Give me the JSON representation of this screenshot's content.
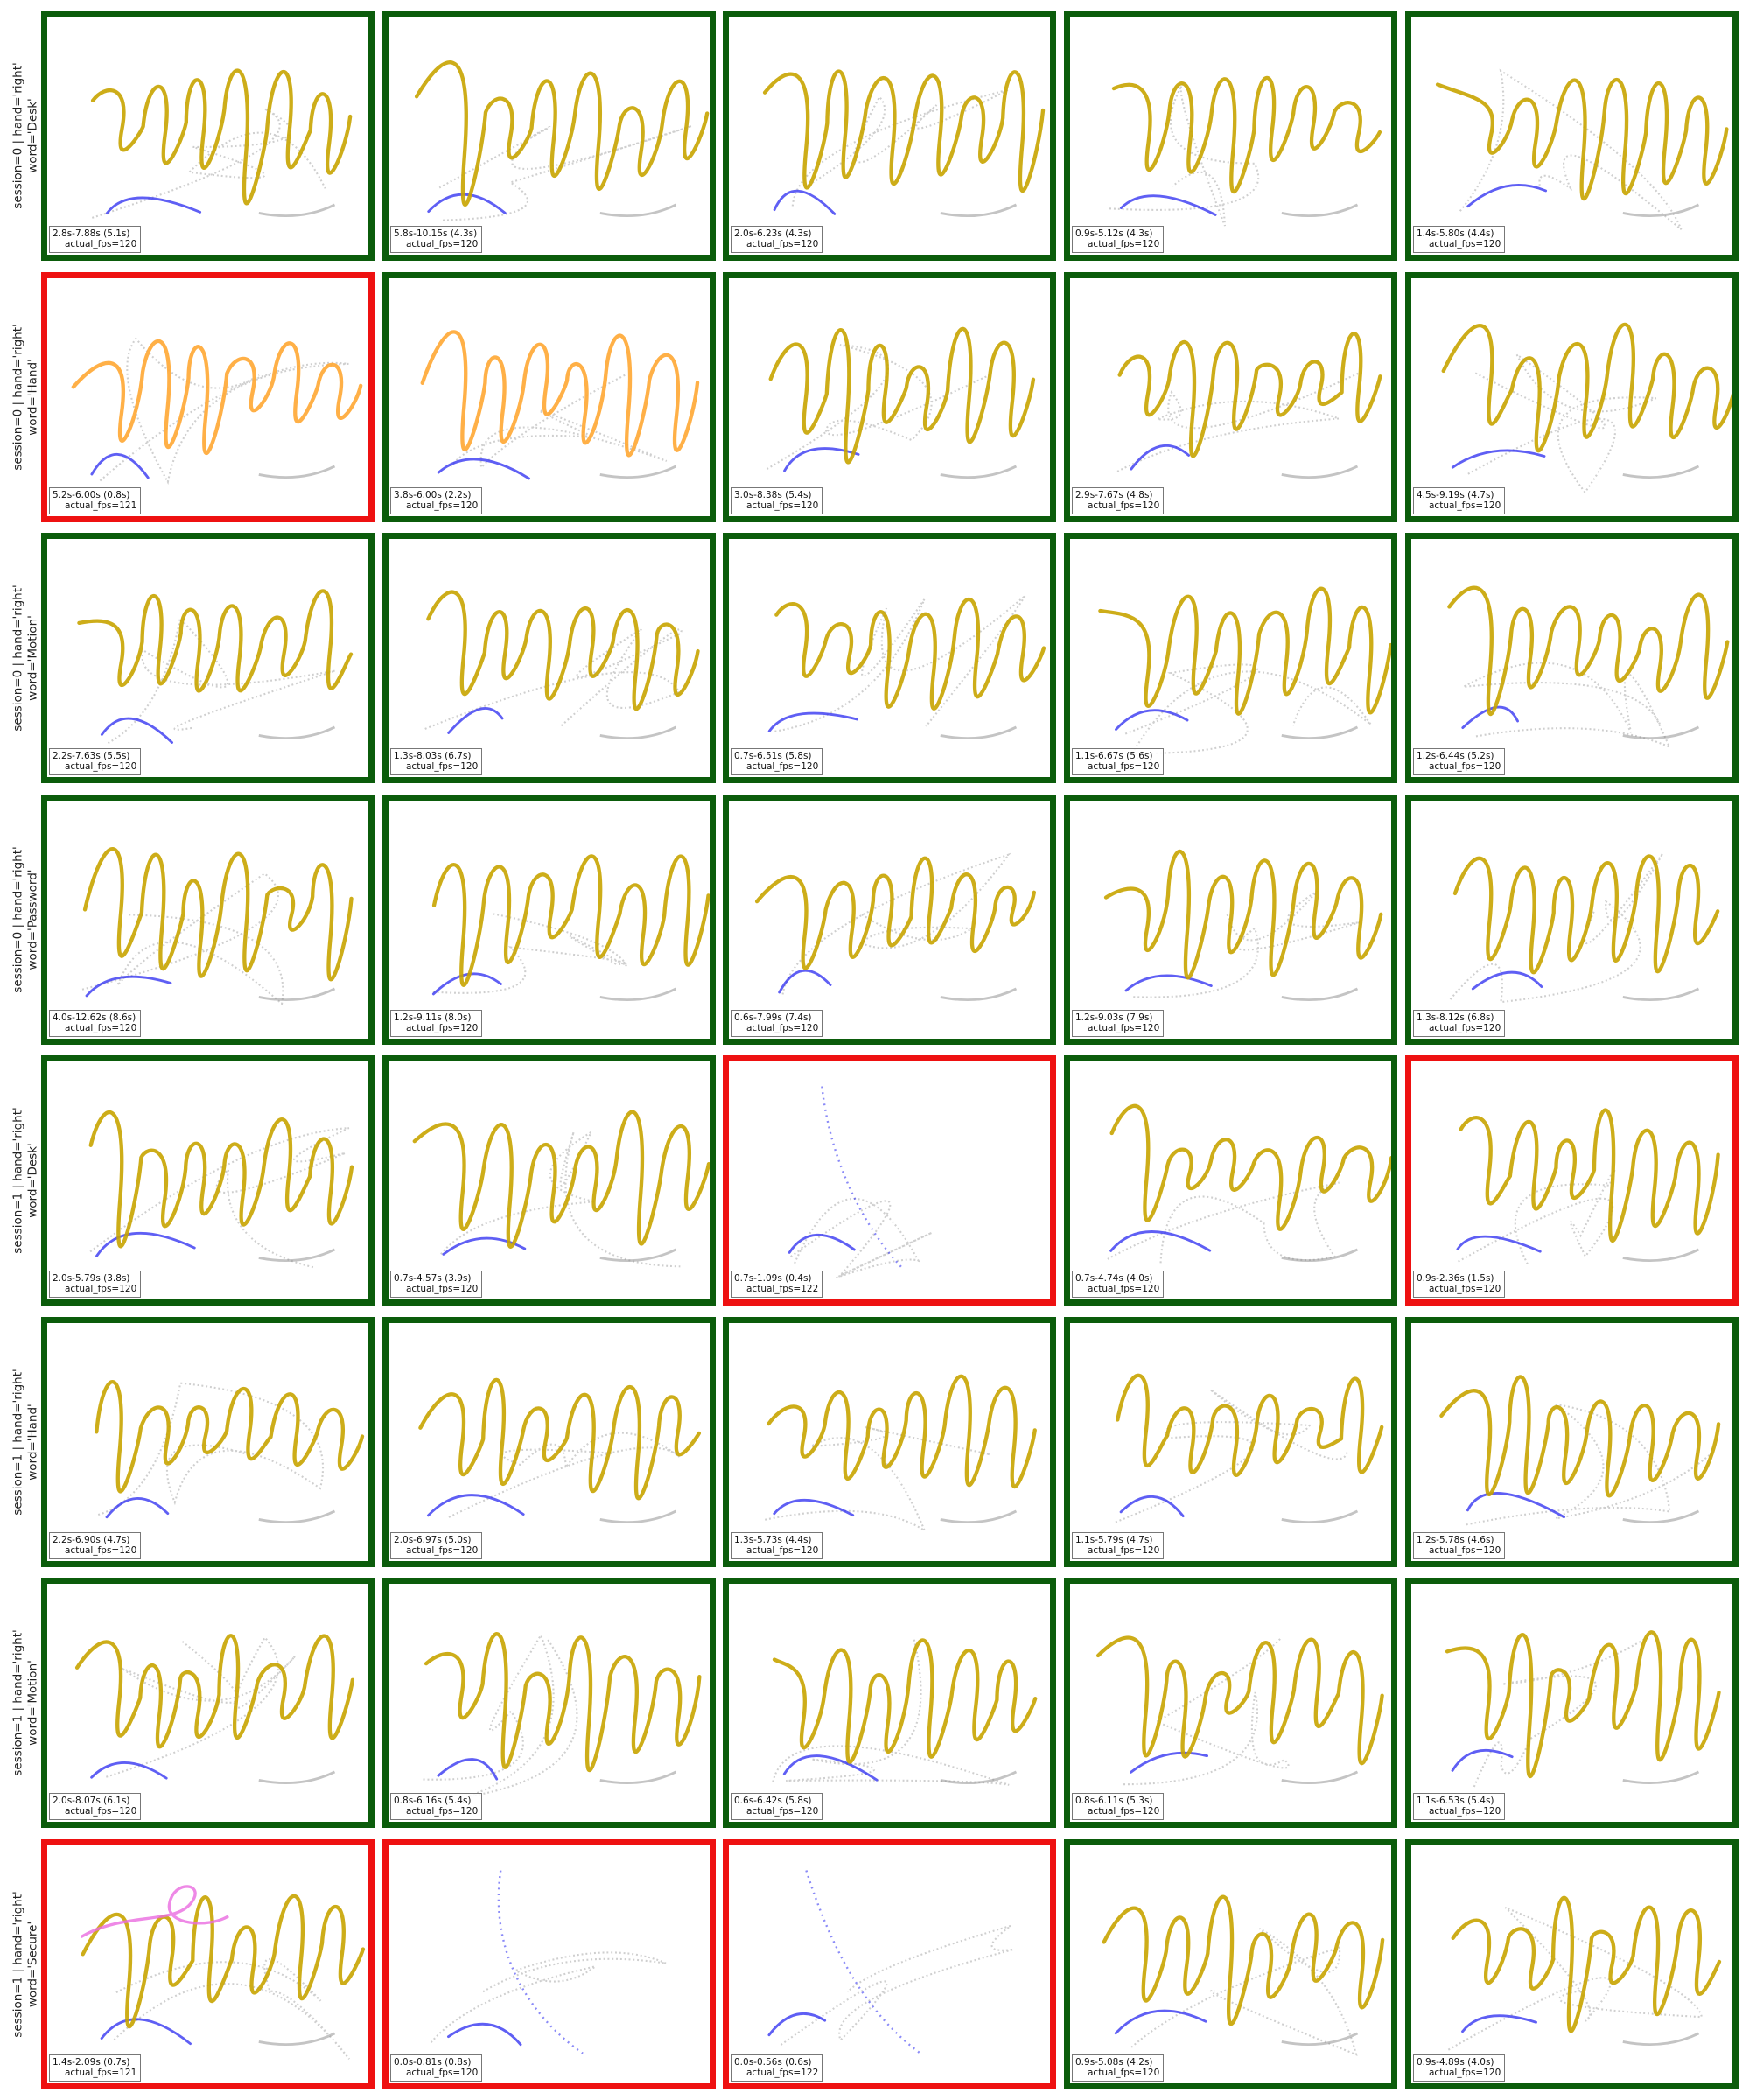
{
  "colors": {
    "ok_border": "#0b5c0b",
    "bad_border": "#ee1111",
    "stroke_main": "#c8a400",
    "stroke_orange": "#ffa733",
    "stroke_blue": "#2a2af0",
    "stroke_gray": "#8a8a8a",
    "stroke_pink": "#ea6ce0"
  },
  "rows": [
    {
      "label_line1": "session=0 | hand='right'",
      "label_line2": "word='Desk'",
      "cells": [
        {
          "time": "2.8s-7.88s (5.1s)",
          "fps": "actual_fps=120",
          "status": "ok"
        },
        {
          "time": "5.8s-10.15s (4.3s)",
          "fps": "actual_fps=120",
          "status": "ok"
        },
        {
          "time": "2.0s-6.23s (4.3s)",
          "fps": "actual_fps=120",
          "status": "ok"
        },
        {
          "time": "0.9s-5.12s (4.3s)",
          "fps": "actual_fps=120",
          "status": "ok"
        },
        {
          "time": "1.4s-5.80s (4.4s)",
          "fps": "actual_fps=120",
          "status": "ok"
        }
      ]
    },
    {
      "label_line1": "session=0 | hand='right'",
      "label_line2": "word='Hand'",
      "cells": [
        {
          "time": "5.2s-6.00s (0.8s)",
          "fps": "actual_fps=121",
          "status": "bad"
        },
        {
          "time": "3.8s-6.00s (2.2s)",
          "fps": "actual_fps=120",
          "status": "ok"
        },
        {
          "time": "3.0s-8.38s (5.4s)",
          "fps": "actual_fps=120",
          "status": "ok"
        },
        {
          "time": "2.9s-7.67s (4.8s)",
          "fps": "actual_fps=120",
          "status": "ok"
        },
        {
          "time": "4.5s-9.19s (4.7s)",
          "fps": "actual_fps=120",
          "status": "ok"
        }
      ]
    },
    {
      "label_line1": "session=0 | hand='right'",
      "label_line2": "word='Motion'",
      "cells": [
        {
          "time": "2.2s-7.63s (5.5s)",
          "fps": "actual_fps=120",
          "status": "ok"
        },
        {
          "time": "1.3s-8.03s (6.7s)",
          "fps": "actual_fps=120",
          "status": "ok"
        },
        {
          "time": "0.7s-6.51s (5.8s)",
          "fps": "actual_fps=120",
          "status": "ok"
        },
        {
          "time": "1.1s-6.67s (5.6s)",
          "fps": "actual_fps=120",
          "status": "ok"
        },
        {
          "time": "1.2s-6.44s (5.2s)",
          "fps": "actual_fps=120",
          "status": "ok"
        }
      ]
    },
    {
      "label_line1": "session=0 | hand='right'",
      "label_line2": "word='Password'",
      "cells": [
        {
          "time": "4.0s-12.62s (8.6s)",
          "fps": "actual_fps=120",
          "status": "ok"
        },
        {
          "time": "1.2s-9.11s (8.0s)",
          "fps": "actual_fps=120",
          "status": "ok"
        },
        {
          "time": "0.6s-7.99s (7.4s)",
          "fps": "actual_fps=120",
          "status": "ok"
        },
        {
          "time": "1.2s-9.03s (7.9s)",
          "fps": "actual_fps=120",
          "status": "ok"
        },
        {
          "time": "1.3s-8.12s (6.8s)",
          "fps": "actual_fps=120",
          "status": "ok"
        }
      ]
    },
    {
      "label_line1": "session=1 | hand='right'",
      "label_line2": "word='Desk'",
      "cells": [
        {
          "time": "2.0s-5.79s (3.8s)",
          "fps": "actual_fps=120",
          "status": "ok"
        },
        {
          "time": "0.7s-4.57s (3.9s)",
          "fps": "actual_fps=120",
          "status": "ok"
        },
        {
          "time": "0.7s-1.09s (0.4s)",
          "fps": "actual_fps=122",
          "status": "bad"
        },
        {
          "time": "0.7s-4.74s (4.0s)",
          "fps": "actual_fps=120",
          "status": "ok"
        },
        {
          "time": "0.9s-2.36s (1.5s)",
          "fps": "actual_fps=120",
          "status": "bad"
        }
      ]
    },
    {
      "label_line1": "session=1 | hand='right'",
      "label_line2": "word='Hand'",
      "cells": [
        {
          "time": "2.2s-6.90s (4.7s)",
          "fps": "actual_fps=120",
          "status": "ok"
        },
        {
          "time": "2.0s-6.97s (5.0s)",
          "fps": "actual_fps=120",
          "status": "ok"
        },
        {
          "time": "1.3s-5.73s (4.4s)",
          "fps": "actual_fps=120",
          "status": "ok"
        },
        {
          "time": "1.1s-5.79s (4.7s)",
          "fps": "actual_fps=120",
          "status": "ok"
        },
        {
          "time": "1.2s-5.78s (4.6s)",
          "fps": "actual_fps=120",
          "status": "ok"
        }
      ]
    },
    {
      "label_line1": "session=1 | hand='right'",
      "label_line2": "word='Motion'",
      "cells": [
        {
          "time": "2.0s-8.07s (6.1s)",
          "fps": "actual_fps=120",
          "status": "ok"
        },
        {
          "time": "0.8s-6.16s (5.4s)",
          "fps": "actual_fps=120",
          "status": "ok"
        },
        {
          "time": "0.6s-6.42s (5.8s)",
          "fps": "actual_fps=120",
          "status": "ok"
        },
        {
          "time": "0.8s-6.11s (5.3s)",
          "fps": "actual_fps=120",
          "status": "ok"
        },
        {
          "time": "1.1s-6.53s (5.4s)",
          "fps": "actual_fps=120",
          "status": "ok"
        }
      ]
    },
    {
      "label_line1": "session=1 | hand='right'",
      "label_line2": "word='Secure'",
      "cells": [
        {
          "time": "1.4s-2.09s (0.7s)",
          "fps": "actual_fps=121",
          "status": "bad"
        },
        {
          "time": "0.0s-0.81s (0.8s)",
          "fps": "actual_fps=120",
          "status": "bad"
        },
        {
          "time": "0.0s-0.56s (0.6s)",
          "fps": "actual_fps=122",
          "status": "bad"
        },
        {
          "time": "0.9s-5.08s (4.2s)",
          "fps": "actual_fps=120",
          "status": "ok"
        },
        {
          "time": "0.9s-4.89s (4.0s)",
          "fps": "actual_fps=120",
          "status": "ok"
        }
      ]
    }
  ]
}
